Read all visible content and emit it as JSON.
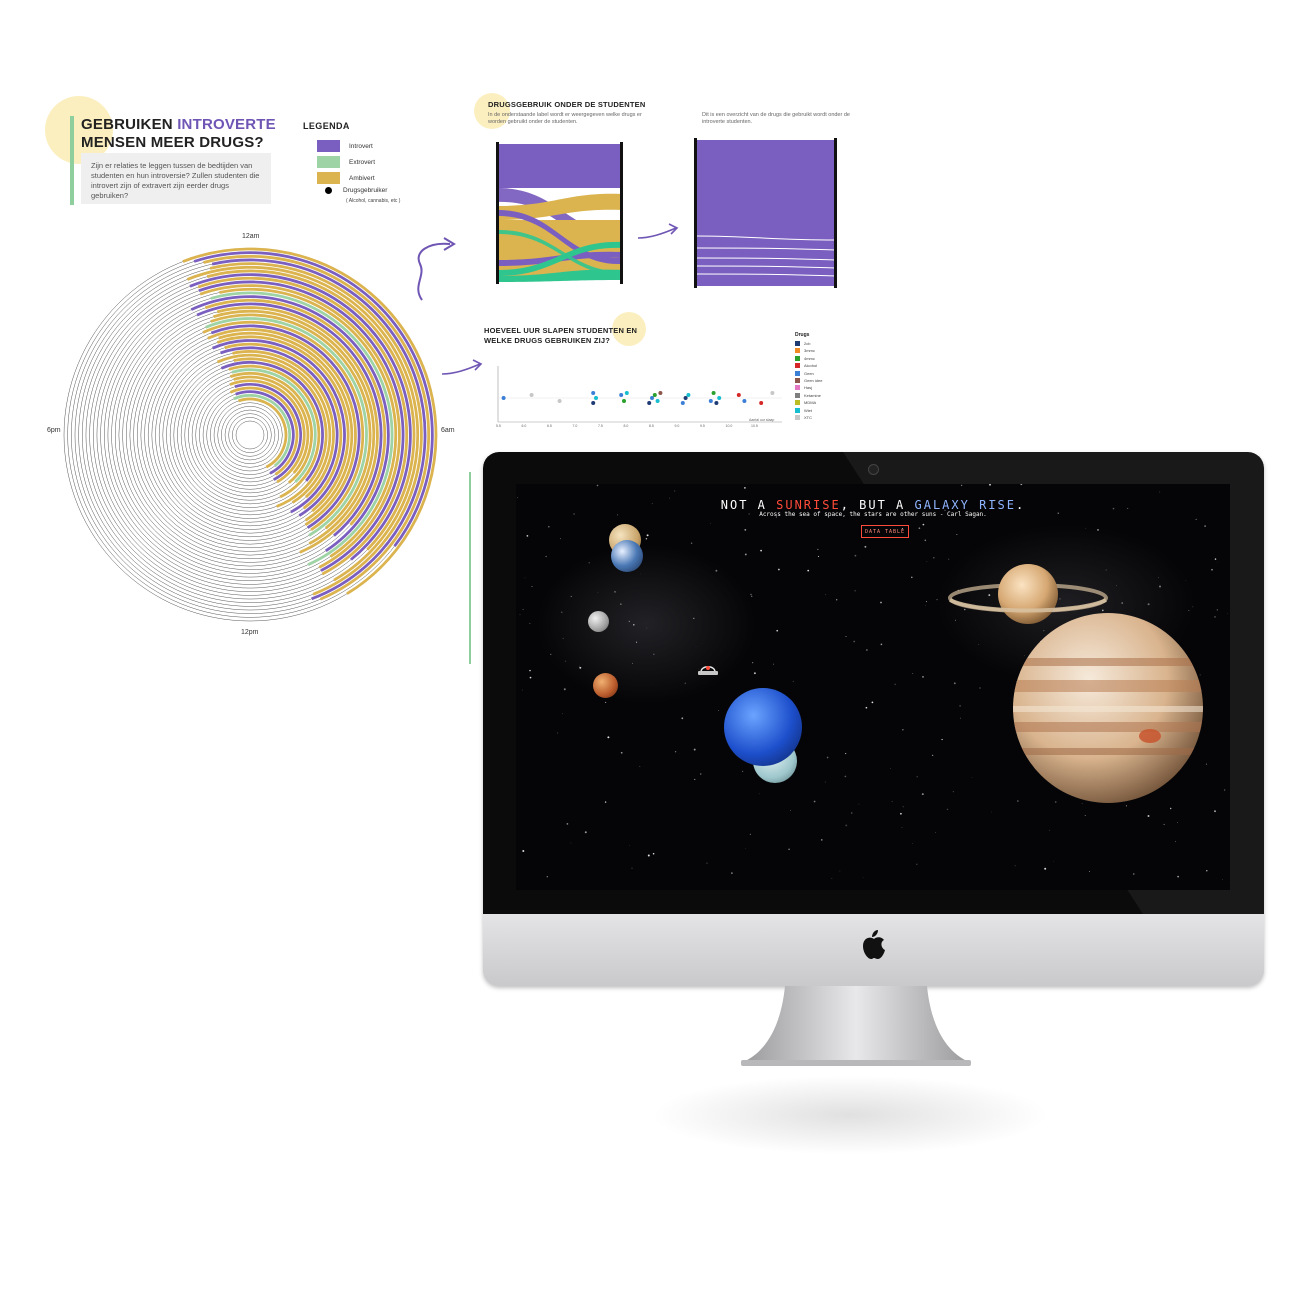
{
  "infographic": {
    "title_part1": "GEBRUIKEN ",
    "title_accent": "INTROVERTE",
    "title_line2": "MENSEN MEER DRUGS?",
    "intro_text": "Zijn er relaties te leggen tussen de bedtijden van studenten en hun introversie? Zullen studenten die introvert zijn of extravert zijn eerder drugs gebruiken?",
    "legend": {
      "title": "LEGENDA",
      "items": [
        {
          "label": "Introvert",
          "color": "#7b5fc0"
        },
        {
          "label": "Extrovert",
          "color": "#9ed3a6"
        },
        {
          "label": "Ambivert",
          "color": "#dcb44f"
        }
      ],
      "dot_label": "Drugsgebruiker",
      "dot_sub": "( Alcohol, cannabis, etc )"
    },
    "clock": {
      "top": "12am",
      "right": "6am",
      "bottom": "12pm",
      "left": "6pm"
    }
  },
  "sankey_panel": {
    "title": "DRUGSGEBRUIK ONDER DE STUDENTEN",
    "text_left": "In de onderstaande label wordt er weergegeven welke drugs er worden gebruikt onder de studenten.",
    "text_right": "Dit is een overzicht van de drugs die gebruikt wordt onder de introverte studenten."
  },
  "sleep_panel": {
    "title_line1": "HOEVEEL UUR SLAPEN STUDENTEN EN",
    "title_line2": "WELKE DRUGS GEBRUIKEN ZIJ?",
    "legend_title": "Drugs",
    "axis_ticks": [
      "5.5",
      "6.0",
      "6.5",
      "7.0",
      "7.5",
      "8.0",
      "8.5",
      "9.0",
      "9.5",
      "10.0",
      "10.5"
    ],
    "axis_label": "Aantal uur slaap"
  },
  "chart_data": {
    "type": "scatter",
    "legend_title": "Drugs",
    "series": [
      {
        "name": "2cb",
        "color": "#1f3b73"
      },
      {
        "name": "3mmc",
        "color": "#f08a24"
      },
      {
        "name": "4mmc",
        "color": "#2ca02c"
      },
      {
        "name": "Alcohol",
        "color": "#d62728"
      },
      {
        "name": "Geen",
        "color": "#3b7fd6"
      },
      {
        "name": "Geen idee",
        "color": "#8c564b"
      },
      {
        "name": "Hasj",
        "color": "#e377c2"
      },
      {
        "name": "Ketamine",
        "color": "#7f7f7f"
      },
      {
        "name": "MDMA",
        "color": "#bcbd22"
      },
      {
        "name": "Wiet",
        "color": "#17becf"
      },
      {
        "name": "XTC",
        "color": "#c7c7c7"
      }
    ],
    "xlabel": "Aantal uur slaap",
    "xlim": [
      5.5,
      10.5
    ]
  },
  "monitor": {
    "title_white1": "NOT A ",
    "title_red1": "SUNRISE",
    "title_white2": ", BUT A ",
    "title_blue": "GALAXY RISE",
    "title_white3": ".",
    "subtitle": "Across the sea of space, the stars are other suns - Carl Sagan.",
    "button": "DATA TABLE",
    "colors": {
      "accent_red": "#ff4b3a",
      "accent_blue": "#8fb4ff"
    }
  }
}
